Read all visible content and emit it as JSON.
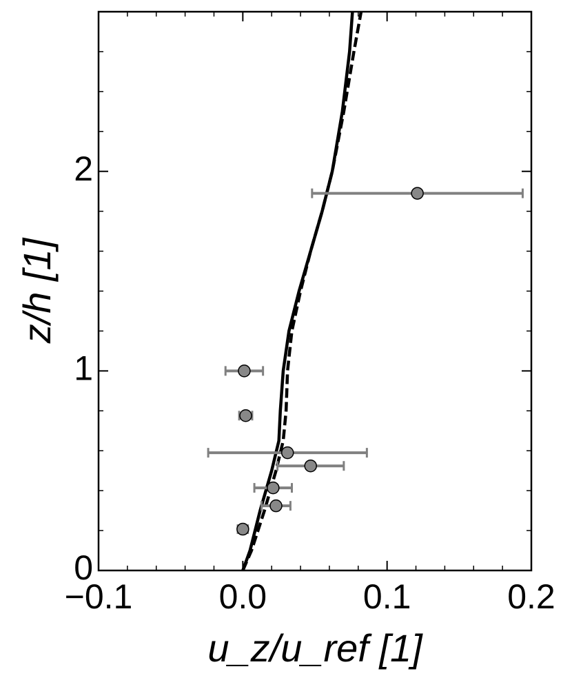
{
  "chart_data": {
    "type": "line",
    "x_label": "u_z/u_ref [1]",
    "y_label": "z/h [1]",
    "xlim": [
      -0.1,
      0.2
    ],
    "ylim": [
      0,
      2.8
    ],
    "xticks": [
      {
        "value": -0.1,
        "label": "−0.1"
      },
      {
        "value": 0,
        "label": "0.0"
      },
      0.1,
      0.2
    ],
    "yticks": [
      0,
      1,
      2
    ],
    "xminorticks": [
      -0.08,
      -0.06,
      -0.04,
      -0.02,
      0.02,
      0.04,
      0.06,
      0.08,
      0.12,
      0.14,
      0.16,
      0.18
    ],
    "yminorticks": [
      0.2,
      0.4,
      0.6,
      0.8,
      1.2,
      1.4,
      1.6,
      1.8,
      2.2,
      2.4,
      2.6
    ],
    "series": [
      {
        "type": "line",
        "dash": false,
        "color": "#000000",
        "x": [
          0,
          0.005,
          0.012,
          0.02,
          0.025,
          0.026,
          0.028,
          0.032,
          0.039,
          0.047,
          0.055,
          0.062,
          0.069,
          0.074,
          0.076
        ],
        "values": [
          0,
          0.1,
          0.3,
          0.5,
          0.65,
          0.8,
          1.0,
          1.2,
          1.4,
          1.6,
          1.8,
          2.0,
          2.3,
          2.6,
          2.8
        ]
      },
      {
        "type": "line",
        "dash": true,
        "color": "#000000",
        "x": [
          0,
          0.006,
          0.015,
          0.023,
          0.028,
          0.03,
          0.031,
          0.034,
          0.04,
          0.047,
          0.055,
          0.062,
          0.07,
          0.077,
          0.082
        ],
        "values": [
          0,
          0.1,
          0.3,
          0.5,
          0.65,
          0.8,
          1.0,
          1.2,
          1.4,
          1.6,
          1.8,
          2.0,
          2.3,
          2.6,
          2.8
        ]
      },
      {
        "type": "scatter",
        "color": "#888888",
        "error_color": "#808080",
        "x": [
          0.121,
          0.001,
          0.002,
          0.031,
          0.047,
          0.021,
          0.023,
          0.0
        ],
        "values": [
          1.89,
          1.0,
          0.776,
          0.59,
          0.524,
          0.414,
          0.324,
          0.207
        ],
        "xerr": [
          0.073,
          0.013,
          0.0045,
          0.055,
          0.023,
          0.013,
          0.01,
          0.0035
        ]
      }
    ]
  }
}
